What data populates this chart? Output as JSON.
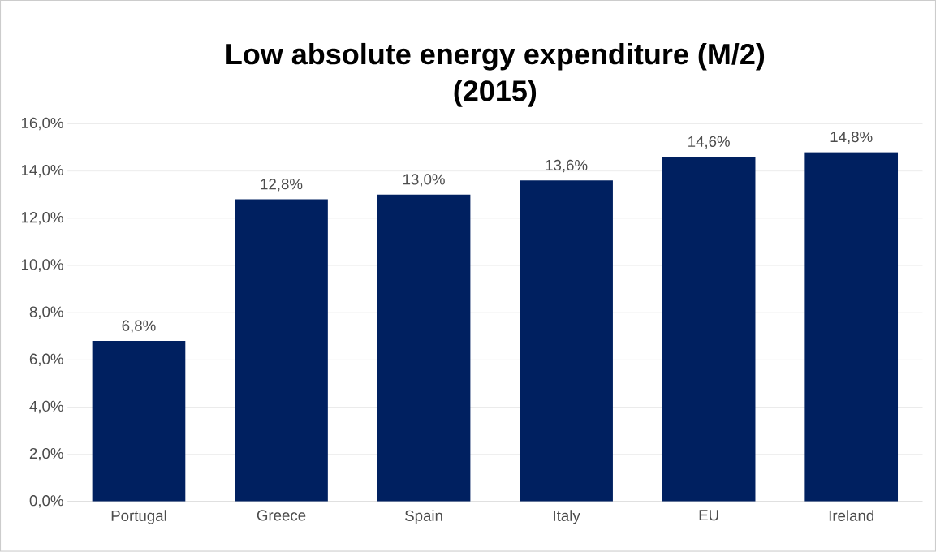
{
  "chart_data": {
    "type": "bar",
    "title": "Low absolute energy expenditure (M/2)",
    "subtitle": "(2015)",
    "categories": [
      "Portugal",
      "Greece",
      "Spain",
      "Italy",
      "EU",
      "Ireland"
    ],
    "values": [
      6.8,
      12.8,
      13.0,
      13.6,
      14.6,
      14.8
    ],
    "value_labels": [
      "6,8%",
      "12,8%",
      "13,0%",
      "13,6%",
      "14,6%",
      "14,8%"
    ],
    "color": "#002060",
    "ylim": [
      0,
      16
    ],
    "yticks": [
      {
        "value": 0,
        "label": "0,0%"
      },
      {
        "value": 2,
        "label": "2,0%"
      },
      {
        "value": 4,
        "label": "4,0%"
      },
      {
        "value": 6,
        "label": "6,0%"
      },
      {
        "value": 8,
        "label": "8,0%"
      },
      {
        "value": 10,
        "label": "10,0%"
      },
      {
        "value": 12,
        "label": "12,0%"
      },
      {
        "value": 14,
        "label": "14,0%"
      },
      {
        "value": 16,
        "label": "16,0%"
      }
    ],
    "grid": true
  }
}
